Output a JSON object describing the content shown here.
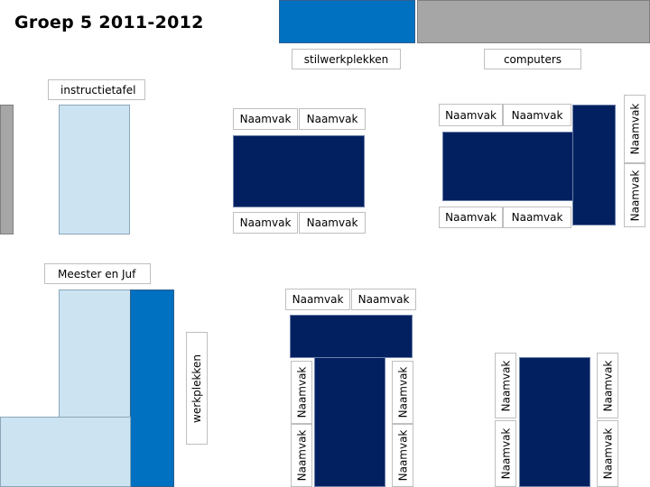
{
  "title": "Groep 5  2011-2012",
  "zones": {
    "stilwerkplekken": "stilwerkplekken",
    "computers": "computers",
    "instructietafel": "instructietafel",
    "meester": "Meester en Juf",
    "werkplekken": "werkplekken"
  },
  "name_tag": "Naamvak",
  "colors": {
    "navy": "#022060",
    "blue": "#0070c0",
    "light_blue": "#cce4f2",
    "gray": "#a6a6a6"
  }
}
